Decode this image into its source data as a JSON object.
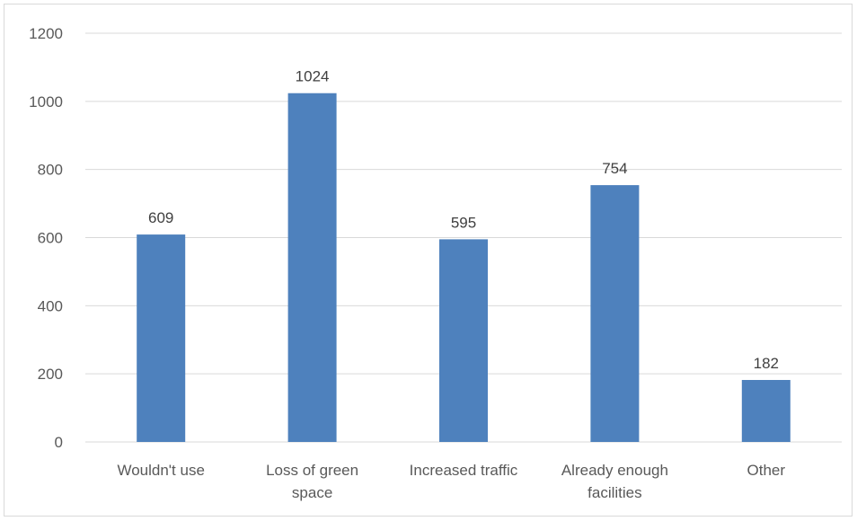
{
  "chart_data": {
    "type": "bar",
    "categories": [
      [
        "Wouldn't use"
      ],
      [
        "Loss of green",
        "space"
      ],
      [
        "Increased traffic"
      ],
      [
        "Already enough",
        "facilities"
      ],
      [
        "Other"
      ]
    ],
    "values": [
      609,
      1024,
      595,
      754,
      182
    ],
    "data_labels": [
      "609",
      "1024",
      "595",
      "754",
      "182"
    ],
    "ylim": [
      0,
      1200
    ],
    "yticks": [
      0,
      200,
      400,
      600,
      800,
      1000,
      1200
    ],
    "ytick_labels": [
      "0",
      "200",
      "400",
      "600",
      "800",
      "1000",
      "1200"
    ],
    "grid": true,
    "legend": "none",
    "title": "",
    "xlabel": "",
    "ylabel": "",
    "colors": {
      "bar": "#4e81bd",
      "grid": "#d9d9d9",
      "text": "#595959"
    }
  }
}
